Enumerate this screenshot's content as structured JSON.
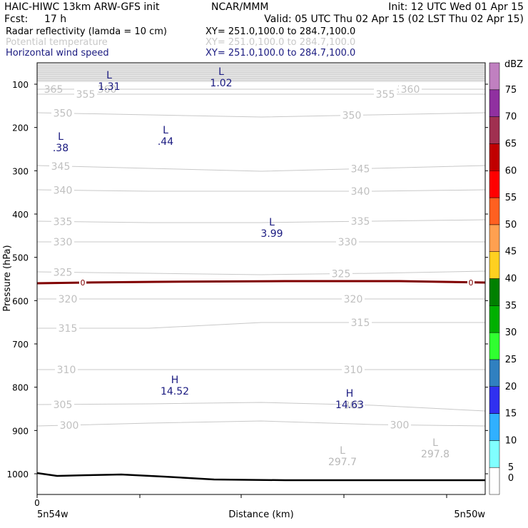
{
  "header": {
    "left_line1": "HAIC-HIWC 13km ARW-GFS init",
    "center_line1": "NCAR/MMM",
    "right_line1": "Init: 12 UTC Wed 01 Apr 15",
    "left_line2": "Fcst:",
    "fcst_value": "17 h",
    "right_line2": "Valid: 05 UTC Thu 02 Apr 15 (02 LST Thu 02 Apr 15)",
    "fields": [
      {
        "label": "Radar reflectivity (lamda = 10 cm)",
        "xy": "XY= 251.0,100.0 to 284.7,100.0",
        "color": "#000000"
      },
      {
        "label": "Potential temperature",
        "xy": "XY= 251.0,100.0 to 284.7,100.0",
        "color": "#c8c8c8"
      },
      {
        "label": "Horizontal wind speed",
        "xy": "XY= 251.0,100.0 to 284.7,100.0",
        "color": "#1a1a80"
      }
    ]
  },
  "axes": {
    "ylabel": "Pressure (hPa)",
    "xlabel": "Distance (km)",
    "x_left_label": "5n54w",
    "x_right_label": "5n50w",
    "x_zero_label": "0",
    "y_ticks": [
      "100",
      "200",
      "300",
      "400",
      "500",
      "600",
      "700",
      "800",
      "900",
      "1000"
    ]
  },
  "colorbar": {
    "unit": "dBZ",
    "levels": [
      "0",
      "5",
      "10",
      "15",
      "20",
      "25",
      "30",
      "35",
      "40",
      "45",
      "50",
      "55",
      "60",
      "65",
      "70",
      "75"
    ],
    "colors": [
      "#ffffff",
      "#80ffff",
      "#30b0ff",
      "#3030f0",
      "#3080c0",
      "#30ff30",
      "#00b000",
      "#008000",
      "#ffd020",
      "#ffa050",
      "#ff6020",
      "#ff0000",
      "#c00000",
      "#a03050",
      "#9030a0",
      "#c080c0"
    ]
  },
  "chart_data": {
    "type": "line",
    "ylim": [
      1050,
      50
    ],
    "theta_contours": [
      {
        "level": 365,
        "y": [
          125,
          125,
          125,
          125,
          125
        ]
      },
      {
        "level": 360,
        "y": [
          125,
          125,
          125,
          125,
          125
        ]
      },
      {
        "level": 355,
        "y": [
          132,
          132,
          132,
          132,
          132
        ]
      },
      {
        "level": 350,
        "y": [
          158,
          161,
          164,
          161,
          158
        ]
      },
      {
        "level": 345,
        "y": [
          232,
          236,
          240,
          236,
          232
        ]
      },
      {
        "level": 340,
        "y": [
          266,
          268,
          268,
          268,
          266
        ]
      },
      {
        "level": 335,
        "y": [
          310,
          312,
          312,
          310,
          308
        ]
      },
      {
        "level": 330,
        "y": [
          339,
          339,
          339,
          339,
          339
        ]
      },
      {
        "level": 325,
        "y": [
          381,
          383,
          385,
          383,
          380
        ]
      },
      {
        "level": 320,
        "y": [
          419,
          419,
          419,
          419,
          419
        ]
      },
      {
        "level": 315,
        "y": [
          460,
          460,
          452,
          452,
          452
        ]
      },
      {
        "level": 310,
        "y": [
          518,
          518,
          518,
          518,
          518
        ]
      },
      {
        "level": 305,
        "y": [
          567,
          566,
          564,
          568,
          576
        ]
      },
      {
        "level": 300,
        "y": [
          597,
          593,
          590,
          595,
          597
        ]
      }
    ],
    "wind_extrema": [
      {
        "kind": "L",
        "value": "1.31",
        "x": 153,
        "y": 110
      },
      {
        "kind": "L",
        "value": "1.02",
        "x": 310,
        "y": 105
      },
      {
        "kind": "L",
        "value": ".38",
        "x": 85,
        "y": 196
      },
      {
        "kind": "L",
        "value": ".44",
        "x": 232,
        "y": 187
      },
      {
        "kind": "L",
        "value": "3.99",
        "x": 381,
        "y": 316
      },
      {
        "kind": "H",
        "value": "14.52",
        "x": 245,
        "y": 537
      },
      {
        "kind": "H",
        "value": "14.63",
        "x": 490,
        "y": 556
      }
    ],
    "theta_extrema": [
      {
        "kind": "L",
        "value": "297.7",
        "x": 480,
        "y": 636
      },
      {
        "kind": "L",
        "value": "297.8",
        "x": 610,
        "y": 625
      }
    ],
    "zero_contour_label": "0"
  }
}
